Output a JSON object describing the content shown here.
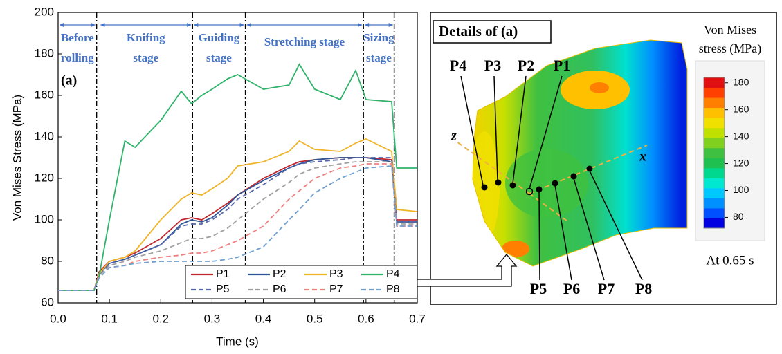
{
  "chart_data": {
    "type": "line",
    "x_label": "Time (s)",
    "y_label": "Von Mises Stress (MPa)",
    "panel_label": "(a)",
    "x": [
      0,
      0.07,
      0.08,
      0.1,
      0.13,
      0.15,
      0.2,
      0.24,
      0.26,
      0.28,
      0.3,
      0.33,
      0.35,
      0.4,
      0.45,
      0.47,
      0.5,
      0.55,
      0.58,
      0.6,
      0.65,
      0.66,
      0.7
    ],
    "xlim": [
      0,
      0.7
    ],
    "xticks": [
      {
        "value": 0,
        "label": "0.0"
      },
      0.1,
      0.2,
      0.3,
      0.4,
      0.5,
      0.6,
      0.7
    ],
    "ylim": [
      60,
      200
    ],
    "yticks": [
      60,
      80,
      100,
      120,
      140,
      160,
      180,
      200
    ],
    "legend": "lower right",
    "series": [
      {
        "name": "P1",
        "color": "#c0282e",
        "style": "solid",
        "values": [
          66,
          66,
          75,
          80,
          82,
          84,
          91,
          100,
          101,
          100,
          103,
          108,
          112,
          120,
          126,
          128,
          129,
          130,
          130,
          130,
          129,
          100,
          100
        ]
      },
      {
        "name": "P2",
        "color": "#2f5597",
        "style": "solid",
        "values": [
          66,
          66,
          74,
          79,
          81,
          83,
          88,
          98,
          100,
          99,
          101,
          107,
          112,
          119,
          125,
          127,
          129,
          130,
          130,
          130,
          128,
          99,
          99
        ]
      },
      {
        "name": "P3",
        "color": "#f0b429",
        "style": "solid",
        "values": [
          66,
          66,
          74,
          80,
          82,
          85,
          100,
          110,
          113,
          112,
          115,
          120,
          126,
          128,
          133,
          138,
          134,
          133,
          137,
          139,
          133,
          105,
          104
        ]
      },
      {
        "name": "P4",
        "color": "#2fb36b",
        "style": "solid",
        "values": [
          66,
          66,
          73,
          100,
          138,
          135,
          148,
          162,
          156,
          160,
          163,
          168,
          170,
          163,
          165,
          175,
          163,
          158,
          172,
          158,
          157,
          125,
          125
        ]
      },
      {
        "name": "P5",
        "color": "#5566aa",
        "style": "dashed",
        "values": [
          66,
          66,
          73,
          79,
          81,
          83,
          88,
          97,
          98,
          98,
          100,
          105,
          110,
          117,
          125,
          127,
          128,
          129,
          130,
          130,
          130,
          99,
          99
        ]
      },
      {
        "name": "P6",
        "color": "#a0a0a0",
        "style": "dashed",
        "values": [
          66,
          66,
          73,
          78,
          80,
          82,
          85,
          89,
          91,
          91,
          92,
          96,
          100,
          110,
          118,
          122,
          125,
          127,
          128,
          128,
          128,
          98,
          98
        ]
      },
      {
        "name": "P7",
        "color": "#f08080",
        "style": "dashed",
        "values": [
          66,
          66,
          72,
          77,
          78,
          80,
          82,
          83,
          84,
          84,
          85,
          88,
          90,
          97,
          110,
          114,
          120,
          125,
          126,
          127,
          127,
          97,
          97
        ]
      },
      {
        "name": "P8",
        "color": "#6fa0d0",
        "style": "dashed",
        "values": [
          66,
          66,
          72,
          77,
          78,
          79,
          80,
          80,
          80,
          80,
          80,
          81,
          82,
          87,
          100,
          105,
          113,
          120,
          123,
          125,
          126,
          97,
          97
        ]
      }
    ],
    "stage_color": "#4472c4",
    "stages": [
      {
        "lines": [
          "Before",
          "rolling"
        ],
        "start": 0,
        "end": 0.075
      },
      {
        "lines": [
          "Knifing",
          "stage"
        ],
        "start": 0.08,
        "end": 0.262
      },
      {
        "lines": [
          "Guiding",
          "stage"
        ],
        "start": 0.262,
        "end": 0.365
      },
      {
        "lines": [
          "Stretching stage"
        ],
        "start": 0.365,
        "end": 0.595
      },
      {
        "lines": [
          "Sizing",
          "stage"
        ],
        "start": 0.595,
        "end": 0.655
      }
    ]
  },
  "detail": {
    "title": "Details of (a)",
    "top_points": [
      "P4",
      "P3",
      "P2",
      "P1"
    ],
    "bottom_points": [
      "P5",
      "P6",
      "P7",
      "P8"
    ],
    "axes": [
      "z",
      "x"
    ],
    "colorbar": {
      "title": [
        "Von Mises",
        "stress (MPa)"
      ],
      "lim": [
        72,
        184
      ],
      "ticks": [
        80,
        100,
        120,
        140,
        160,
        180
      ],
      "colors": [
        "#0000e0",
        "#0050ff",
        "#0090ff",
        "#00c8ff",
        "#00e8d0",
        "#00d890",
        "#20c050",
        "#40c040",
        "#80d020",
        "#c0e000",
        "#f0e000",
        "#ffc000",
        "#ff8000",
        "#ff4000",
        "#e01010"
      ]
    },
    "note": "At 0.65 s"
  }
}
